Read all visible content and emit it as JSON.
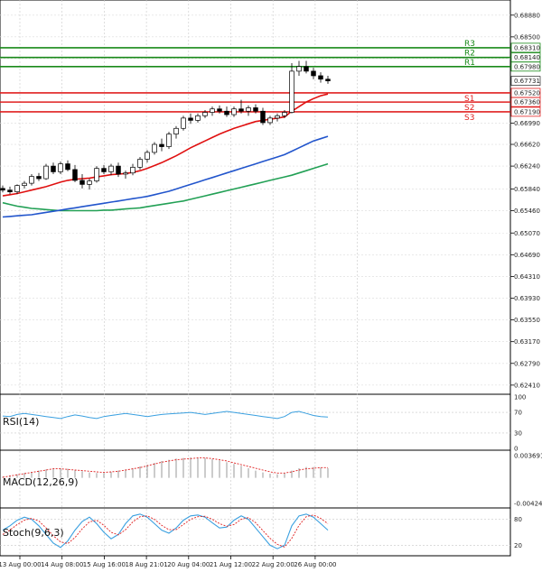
{
  "price_axis": {
    "ticks": [
      "0.68880",
      "0.68500",
      "0.68120",
      "0.67731",
      "0.66990",
      "0.66620",
      "0.66240",
      "0.65840",
      "0.65460",
      "0.65070",
      "0.64690",
      "0.64310",
      "0.63930",
      "0.63550",
      "0.63170",
      "0.62790",
      "0.62410"
    ],
    "current_price": "0.67731"
  },
  "levels": [
    {
      "name": "R3",
      "value": "0.68310",
      "num": 0.6831,
      "color": "#1a8a1a"
    },
    {
      "name": "R2",
      "value": "0.68140",
      "num": 0.6814,
      "color": "#1a8a1a"
    },
    {
      "name": "R1",
      "value": "0.67980",
      "num": 0.6798,
      "color": "#1a8a1a"
    },
    {
      "name": "S1",
      "value": "0.67520",
      "num": 0.6752,
      "color": "#e02020"
    },
    {
      "name": "S2",
      "value": "0.67360",
      "num": 0.6736,
      "color": "#e02020"
    },
    {
      "name": "S3",
      "value": "0.67190",
      "num": 0.6719,
      "color": "#e02020"
    }
  ],
  "x_axis": {
    "labels": [
      "13 Aug 00:00",
      "14 Aug 08:00",
      "15 Aug 16:00",
      "18 Aug 21:01",
      "20 Aug 04:00",
      "21 Aug 12:00",
      "22 Aug 20:00",
      "26 Aug 00:00"
    ]
  },
  "indicators": {
    "rsi": {
      "label": "RSI(14)",
      "ticks": [
        "100",
        "70",
        "30",
        "0"
      ]
    },
    "macd": {
      "label": "MACD(12,26,9)",
      "ticks": [
        "0.003691",
        "-0.004246"
      ]
    },
    "stoch": {
      "label": "Stoch(9,6,3)",
      "ticks": [
        "80",
        "20"
      ]
    }
  },
  "colors": {
    "bull": "#1a8a1a",
    "bear": "#e02020",
    "ma_fast": "#e01010",
    "ma_mid": "#2255cc",
    "ma_slow": "#22a055",
    "rsi_line": "#3aa0e0",
    "macd_hist": "#999999",
    "macd_signal": "#e02020",
    "stoch_main": "#3aa0e0",
    "stoch_signal": "#e02020"
  },
  "chart_data": {
    "type": "candlestick",
    "instrument_timeframe": "",
    "y_range": [
      0.6225,
      0.6905
    ],
    "candles": [
      [
        0.6585,
        0.659,
        0.6578,
        0.6582
      ],
      [
        0.6582,
        0.6588,
        0.6575,
        0.6579
      ],
      [
        0.6579,
        0.6592,
        0.6575,
        0.659
      ],
      [
        0.659,
        0.6598,
        0.6585,
        0.6594
      ],
      [
        0.6594,
        0.661,
        0.659,
        0.6606
      ],
      [
        0.6606,
        0.6612,
        0.6598,
        0.6602
      ],
      [
        0.6602,
        0.6628,
        0.66,
        0.6624
      ],
      [
        0.6624,
        0.663,
        0.661,
        0.6614
      ],
      [
        0.6614,
        0.6632,
        0.661,
        0.6628
      ],
      [
        0.6628,
        0.6634,
        0.6615,
        0.6618
      ],
      [
        0.6618,
        0.6626,
        0.6596,
        0.6599
      ],
      [
        0.6599,
        0.661,
        0.6585,
        0.6592
      ],
      [
        0.6592,
        0.6602,
        0.6583,
        0.6598
      ],
      [
        0.6598,
        0.6624,
        0.6595,
        0.662
      ],
      [
        0.662,
        0.6626,
        0.661,
        0.6614
      ],
      [
        0.6614,
        0.6628,
        0.6608,
        0.6624
      ],
      [
        0.6624,
        0.663,
        0.6605,
        0.661
      ],
      [
        0.661,
        0.6616,
        0.6602,
        0.6612
      ],
      [
        0.6612,
        0.6628,
        0.6608,
        0.6622
      ],
      [
        0.6622,
        0.664,
        0.6618,
        0.6636
      ],
      [
        0.6636,
        0.6652,
        0.663,
        0.6648
      ],
      [
        0.6648,
        0.6666,
        0.6644,
        0.6662
      ],
      [
        0.6662,
        0.6672,
        0.665,
        0.6658
      ],
      [
        0.6658,
        0.6684,
        0.6654,
        0.668
      ],
      [
        0.668,
        0.6694,
        0.6672,
        0.669
      ],
      [
        0.669,
        0.6712,
        0.6686,
        0.6708
      ],
      [
        0.6708,
        0.6716,
        0.6698,
        0.6704
      ],
      [
        0.6704,
        0.6716,
        0.67,
        0.6712
      ],
      [
        0.6712,
        0.6722,
        0.6708,
        0.6718
      ],
      [
        0.6718,
        0.6728,
        0.6712,
        0.6724
      ],
      [
        0.6724,
        0.673,
        0.6716,
        0.672
      ],
      [
        0.672,
        0.6728,
        0.671,
        0.6714
      ],
      [
        0.6714,
        0.6728,
        0.671,
        0.6724
      ],
      [
        0.6724,
        0.674,
        0.6716,
        0.672
      ],
      [
        0.672,
        0.673,
        0.6712,
        0.6726
      ],
      [
        0.6726,
        0.6732,
        0.6716,
        0.672
      ],
      [
        0.672,
        0.6726,
        0.6696,
        0.67
      ],
      [
        0.67,
        0.6712,
        0.6696,
        0.6708
      ],
      [
        0.6708,
        0.6716,
        0.6702,
        0.6712
      ],
      [
        0.6712,
        0.6722,
        0.6708,
        0.6718
      ],
      [
        0.6718,
        0.6804,
        0.6716,
        0.679
      ],
      [
        0.679,
        0.6808,
        0.6782,
        0.6798
      ],
      [
        0.6798,
        0.6808,
        0.6786,
        0.679
      ],
      [
        0.679,
        0.6796,
        0.6776,
        0.6782
      ],
      [
        0.6782,
        0.6788,
        0.677,
        0.6776
      ],
      [
        0.6776,
        0.6782,
        0.6768,
        0.6773
      ]
    ],
    "ma_fast": [
      0.6572,
      0.6574,
      0.6576,
      0.6579,
      0.6582,
      0.6585,
      0.6588,
      0.6592,
      0.6596,
      0.6599,
      0.6601,
      0.6602,
      0.6603,
      0.6605,
      0.6607,
      0.6609,
      0.661,
      0.6611,
      0.6613,
      0.6616,
      0.662,
      0.6625,
      0.663,
      0.6636,
      0.6642,
      0.6649,
      0.6656,
      0.6662,
      0.6668,
      0.6674,
      0.668,
      0.6685,
      0.669,
      0.6694,
      0.6698,
      0.6702,
      0.6704,
      0.6706,
      0.6708,
      0.671,
      0.672,
      0.6728,
      0.6736,
      0.6742,
      0.6747,
      0.675
    ],
    "ma_mid": [
      0.6535,
      0.6536,
      0.6537,
      0.6538,
      0.6539,
      0.6541,
      0.6543,
      0.6545,
      0.6547,
      0.6549,
      0.6551,
      0.6553,
      0.6555,
      0.6557,
      0.6559,
      0.6561,
      0.6563,
      0.6565,
      0.6567,
      0.6569,
      0.6571,
      0.6574,
      0.6577,
      0.658,
      0.6584,
      0.6588,
      0.6592,
      0.6596,
      0.66,
      0.6604,
      0.6608,
      0.6612,
      0.6616,
      0.662,
      0.6624,
      0.6628,
      0.6632,
      0.6636,
      0.664,
      0.6644,
      0.665,
      0.6656,
      0.6662,
      0.6668,
      0.6672,
      0.6676
    ],
    "ma_slow": [
      0.656,
      0.6557,
      0.6554,
      0.6552,
      0.655,
      0.6549,
      0.6548,
      0.6547,
      0.6546,
      0.6546,
      0.6546,
      0.6546,
      0.6546,
      0.6546,
      0.6547,
      0.6547,
      0.6548,
      0.6549,
      0.655,
      0.6551,
      0.6553,
      0.6555,
      0.6557,
      0.6559,
      0.6561,
      0.6563,
      0.6566,
      0.6569,
      0.6572,
      0.6575,
      0.6578,
      0.6581,
      0.6584,
      0.6587,
      0.659,
      0.6593,
      0.6596,
      0.6599,
      0.6602,
      0.6605,
      0.6608,
      0.6612,
      0.6616,
      0.662,
      0.6624,
      0.6628
    ],
    "rsi": [
      63,
      62,
      66,
      68,
      66,
      64,
      62,
      60,
      58,
      62,
      65,
      63,
      60,
      58,
      62,
      64,
      66,
      68,
      66,
      64,
      62,
      64,
      66,
      67,
      68,
      69,
      70,
      68,
      66,
      68,
      70,
      72,
      70,
      68,
      66,
      64,
      62,
      60,
      58,
      62,
      70,
      72,
      68,
      64,
      62,
      61
    ],
    "macd_hist": [
      0.0002,
      0.0004,
      0.0006,
      0.0008,
      0.001,
      0.0012,
      0.0014,
      0.0016,
      0.0016,
      0.0015,
      0.0013,
      0.0011,
      0.0009,
      0.0008,
      0.0008,
      0.001,
      0.0012,
      0.0014,
      0.0016,
      0.0019,
      0.0022,
      0.0025,
      0.0028,
      0.003,
      0.0032,
      0.0033,
      0.0034,
      0.0034,
      0.0033,
      0.0031,
      0.0029,
      0.0026,
      0.0023,
      0.002,
      0.0016,
      0.0012,
      0.0009,
      0.0007,
      0.0006,
      0.0008,
      0.0012,
      0.0016,
      0.0018,
      0.0018,
      0.0017,
      0.0016
    ],
    "macd_signal": [
      0.0001,
      0.0003,
      0.0005,
      0.0007,
      0.0009,
      0.0011,
      0.0013,
      0.0015,
      0.0015,
      0.0014,
      0.0013,
      0.0012,
      0.0011,
      0.001,
      0.0009,
      0.001,
      0.0011,
      0.0013,
      0.0015,
      0.0017,
      0.002,
      0.0023,
      0.0026,
      0.0028,
      0.003,
      0.0031,
      0.0032,
      0.0033,
      0.0033,
      0.0032,
      0.003,
      0.0028,
      0.0025,
      0.0022,
      0.0019,
      0.0016,
      0.0013,
      0.001,
      0.0008,
      0.0008,
      0.001,
      0.0013,
      0.0015,
      0.0016,
      0.0017,
      0.0017
    ],
    "stoch_main": [
      55,
      65,
      78,
      85,
      80,
      65,
      45,
      25,
      15,
      30,
      55,
      75,
      85,
      70,
      50,
      35,
      45,
      70,
      88,
      92,
      85,
      70,
      55,
      48,
      60,
      78,
      88,
      90,
      85,
      72,
      60,
      62,
      78,
      88,
      80,
      60,
      40,
      20,
      12,
      20,
      65,
      88,
      92,
      85,
      70,
      55
    ],
    "stoch_signal": [
      45,
      55,
      68,
      78,
      82,
      76,
      60,
      42,
      28,
      24,
      38,
      58,
      74,
      78,
      66,
      50,
      44,
      56,
      74,
      86,
      88,
      80,
      66,
      56,
      56,
      68,
      80,
      86,
      87,
      80,
      70,
      64,
      68,
      80,
      84,
      72,
      54,
      36,
      22,
      16,
      36,
      66,
      86,
      90,
      82,
      70
    ]
  }
}
